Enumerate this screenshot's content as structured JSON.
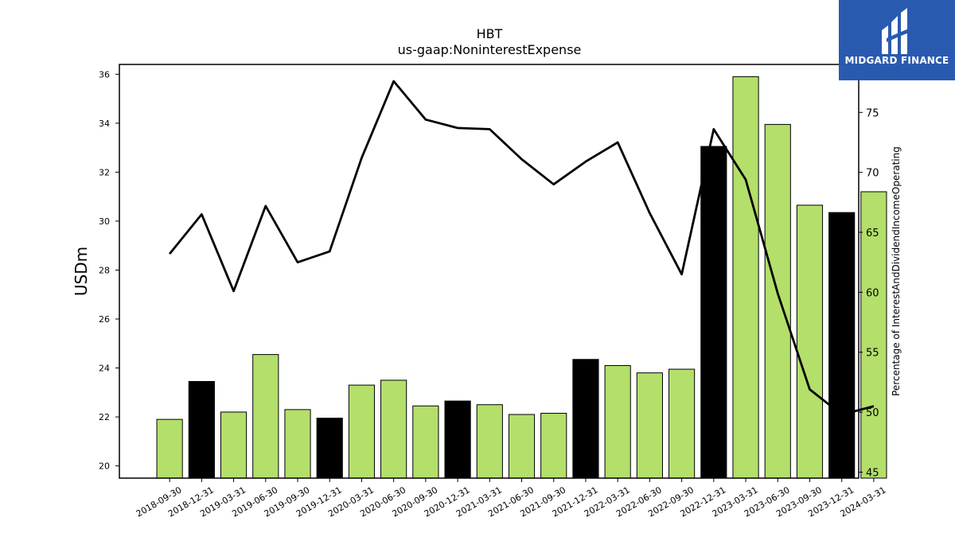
{
  "brand": {
    "name": "MIDGARD FINANCE",
    "logo_icon": "midgard-logo-icon",
    "color": "#2a5ab0"
  },
  "chart_data": {
    "type": "bar",
    "title": "HBT",
    "subtitle": "us-gaap:NoninterestExpense",
    "ylabel": "USDm",
    "y2label": "Percentage of InterestAndDividendIncomeOperating",
    "ylim": [
      19.5,
      36.4
    ],
    "y2lim": [
      44.5,
      79.0
    ],
    "yticks": [
      20,
      22,
      24,
      26,
      28,
      30,
      32,
      34,
      36
    ],
    "y2ticks": [
      45,
      50,
      55,
      60,
      65,
      70,
      75
    ],
    "grid": false,
    "categories": [
      "2018-09-30",
      "2018-12-31",
      "2019-03-31",
      "2019-06-30",
      "2019-09-30",
      "2019-12-31",
      "2020-03-31",
      "2020-06-30",
      "2020-09-30",
      "2020-12-31",
      "2021-03-31",
      "2021-06-30",
      "2021-09-30",
      "2021-12-31",
      "2022-03-31",
      "2022-06-30",
      "2022-09-30",
      "2022-12-31",
      "2023-03-31",
      "2023-06-30",
      "2023-09-30",
      "2023-12-31",
      "2024-03-31"
    ],
    "series": [
      {
        "kind": "bar",
        "axis": "left",
        "values": [
          21.9,
          23.45,
          22.2,
          24.55,
          22.3,
          21.95,
          23.3,
          23.5,
          22.45,
          22.65,
          22.5,
          22.1,
          22.15,
          24.35,
          24.1,
          23.8,
          23.95,
          33.05,
          35.9,
          33.95,
          30.65,
          30.35,
          31.2
        ],
        "colors": [
          "#b3df6a",
          "#000000",
          "#b3df6a",
          "#b3df6a",
          "#b3df6a",
          "#000000",
          "#b3df6a",
          "#b3df6a",
          "#b3df6a",
          "#000000",
          "#b3df6a",
          "#b3df6a",
          "#b3df6a",
          "#000000",
          "#b3df6a",
          "#b3df6a",
          "#b3df6a",
          "#000000",
          "#b3df6a",
          "#b3df6a",
          "#b3df6a",
          "#000000",
          "#b3df6a"
        ]
      },
      {
        "kind": "line",
        "axis": "right",
        "color": "#000000",
        "values": [
          63.2,
          66.5,
          60.1,
          67.2,
          62.5,
          63.4,
          71.2,
          77.6,
          74.4,
          73.7,
          73.6,
          71.1,
          69.0,
          70.9,
          72.5,
          66.6,
          61.5,
          73.6,
          69.4,
          59.9,
          51.9,
          49.8,
          50.5
        ]
      }
    ]
  }
}
